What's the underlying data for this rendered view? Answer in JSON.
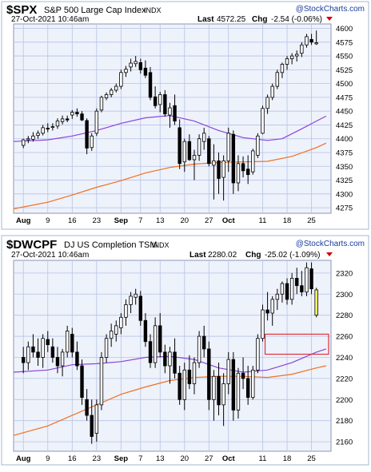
{
  "colors": {
    "background": "#ffffff",
    "plot_bg": "#eef2fb",
    "panel_border": "#aab4d2",
    "grid": "#b6c3e6",
    "candle": "#000000",
    "ma_short": "#8a44d8",
    "ma_long": "#f07020",
    "logo_blue": "#1a3c9c",
    "chg_marker": "#cc0000",
    "highlight_box": "#e0303a",
    "last_bar_fill": "#ffff66"
  },
  "chart_data": [
    {
      "type": "candlestick",
      "ticker": "$SPX",
      "title": "S&P 500 Large Cap Index",
      "exchange": "INDX",
      "brand": "@StockCharts.com",
      "timestamp": "27-Oct-2021 10:46am",
      "last_label": "Last",
      "last_value": "4572.25",
      "chg_label": "Chg",
      "chg_value": "-2.54 (-0.06%)",
      "ylim": [
        4265,
        4608
      ],
      "y_ticks": [
        "4275",
        "4300",
        "4325",
        "4350",
        "4375",
        "4400",
        "4425",
        "4450",
        "4475",
        "4500",
        "4525",
        "4550",
        "4575",
        "4600"
      ],
      "x_ticks": [
        "Aug",
        "9",
        "16",
        "23",
        "Sep",
        "7",
        "13",
        "20",
        "27",
        "Oct",
        "11",
        "18",
        "25"
      ],
      "x_tick_days": [
        0,
        5,
        10,
        15,
        20,
        24,
        28,
        33,
        38,
        42,
        49,
        54,
        59
      ],
      "x_tick_bold": [
        "Aug",
        "Sep",
        "Oct"
      ],
      "x_range": [
        -2,
        63
      ],
      "candles": [
        [
          4388,
          4400,
          4383,
          4398
        ],
        [
          4398,
          4405,
          4392,
          4400
        ],
        [
          4399,
          4412,
          4395,
          4405
        ],
        [
          4406,
          4415,
          4400,
          4410
        ],
        [
          4410,
          4425,
          4406,
          4420
        ],
        [
          4419,
          4428,
          4412,
          4418
        ],
        [
          4421,
          4428,
          4415,
          4422
        ],
        [
          4423,
          4437,
          4418,
          4432
        ],
        [
          4431,
          4442,
          4426,
          4436
        ],
        [
          4436,
          4442,
          4430,
          4434
        ],
        [
          4443,
          4452,
          4436,
          4448
        ],
        [
          4448,
          4455,
          4440,
          4445
        ],
        [
          4445,
          4450,
          4432,
          4434
        ],
        [
          4433,
          4437,
          4372,
          4383
        ],
        [
          4384,
          4410,
          4378,
          4405
        ],
        [
          4410,
          4455,
          4405,
          4450
        ],
        [
          4452,
          4478,
          4448,
          4475
        ],
        [
          4474,
          4484,
          4470,
          4480
        ],
        [
          4480,
          4492,
          4475,
          4488
        ],
        [
          4488,
          4500,
          4484,
          4495
        ],
        [
          4495,
          4525,
          4490,
          4520
        ],
        [
          4520,
          4532,
          4512,
          4526
        ],
        [
          4530,
          4545,
          4522,
          4537
        ],
        [
          4536,
          4550,
          4530,
          4540
        ],
        [
          4538,
          4545,
          4518,
          4525
        ],
        [
          4528,
          4542,
          4510,
          4515
        ],
        [
          4520,
          4530,
          4470,
          4475
        ],
        [
          4476,
          4495,
          4455,
          4460
        ],
        [
          4462,
          4485,
          4448,
          4480
        ],
        [
          4480,
          4488,
          4440,
          4445
        ],
        [
          4443,
          4465,
          4420,
          4456
        ],
        [
          4460,
          4480,
          4425,
          4432
        ],
        [
          4420,
          4435,
          4345,
          4355
        ],
        [
          4358,
          4400,
          4340,
          4395
        ],
        [
          4395,
          4408,
          4360,
          4362
        ],
        [
          4362,
          4380,
          4325,
          4370
        ],
        [
          4370,
          4408,
          4360,
          4400
        ],
        [
          4395,
          4420,
          4380,
          4410
        ],
        [
          4400,
          4405,
          4350,
          4355
        ],
        [
          4352,
          4390,
          4290,
          4360
        ],
        [
          4360,
          4375,
          4300,
          4328
        ],
        [
          4330,
          4370,
          4288,
          4360
        ],
        [
          4360,
          4420,
          4340,
          4410
        ],
        [
          4408,
          4415,
          4300,
          4320
        ],
        [
          4320,
          4370,
          4305,
          4355
        ],
        [
          4355,
          4368,
          4330,
          4342
        ],
        [
          4345,
          4370,
          4318,
          4335
        ],
        [
          4340,
          4382,
          4335,
          4378
        ],
        [
          4370,
          4410,
          4365,
          4405
        ],
        [
          4410,
          4460,
          4408,
          4455
        ],
        [
          4455,
          4480,
          4445,
          4475
        ],
        [
          4475,
          4500,
          4470,
          4495
        ],
        [
          4495,
          4525,
          4490,
          4520
        ],
        [
          4520,
          4538,
          4510,
          4535
        ],
        [
          4535,
          4550,
          4525,
          4545
        ],
        [
          4545,
          4555,
          4535,
          4550
        ],
        [
          4550,
          4560,
          4540,
          4553
        ],
        [
          4555,
          4575,
          4548,
          4570
        ],
        [
          4570,
          4590,
          4565,
          4585
        ],
        [
          4580,
          4590,
          4570,
          4575
        ]
      ],
      "last_candle": [
        4574,
        4596,
        4570,
        4572
      ],
      "ma_short": [
        [
          -2,
          4395
        ],
        [
          5,
          4398
        ],
        [
          10,
          4405
        ],
        [
          15,
          4415
        ],
        [
          20,
          4428
        ],
        [
          25,
          4438
        ],
        [
          30,
          4442
        ],
        [
          35,
          4432
        ],
        [
          40,
          4415
        ],
        [
          45,
          4402
        ],
        [
          50,
          4397
        ],
        [
          53,
          4400
        ],
        [
          57,
          4418
        ],
        [
          60,
          4432
        ],
        [
          62,
          4441
        ]
      ],
      "ma_long": [
        [
          -2,
          4273
        ],
        [
          5,
          4285
        ],
        [
          10,
          4298
        ],
        [
          15,
          4312
        ],
        [
          20,
          4324
        ],
        [
          25,
          4338
        ],
        [
          30,
          4348
        ],
        [
          35,
          4354
        ],
        [
          40,
          4357
        ],
        [
          45,
          4358
        ],
        [
          50,
          4359
        ],
        [
          55,
          4368
        ],
        [
          60,
          4384
        ],
        [
          62,
          4392
        ]
      ],
      "highlight_box": null
    },
    {
      "type": "candlestick",
      "ticker": "$DWCPF",
      "title": "DJ US Completion TSM",
      "exchange": "INDX",
      "brand": "@StockCharts.com",
      "timestamp": "27-Oct-2021 10:46am",
      "last_label": "Last",
      "last_value": "2280.02",
      "chg_label": "Chg",
      "chg_value": "-25.02 (-1.09%)",
      "ylim": [
        2151,
        2332
      ],
      "y_ticks": [
        "2160",
        "2180",
        "2200",
        "2220",
        "2240",
        "2260",
        "2280",
        "2300",
        "2320"
      ],
      "x_ticks": [
        "Aug",
        "9",
        "16",
        "23",
        "Sep",
        "7",
        "13",
        "20",
        "27",
        "Oct",
        "11",
        "18",
        "25"
      ],
      "x_tick_days": [
        0,
        5,
        10,
        15,
        20,
        24,
        28,
        33,
        38,
        42,
        49,
        54,
        59
      ],
      "x_tick_bold": [
        "Aug",
        "Sep",
        "Oct"
      ],
      "x_range": [
        -2,
        63
      ],
      "candles": [
        [
          2240,
          2250,
          2225,
          2235
        ],
        [
          2235,
          2255,
          2228,
          2250
        ],
        [
          2250,
          2262,
          2240,
          2245
        ],
        [
          2245,
          2258,
          2232,
          2240
        ],
        [
          2240,
          2262,
          2230,
          2258
        ],
        [
          2257,
          2265,
          2245,
          2252
        ],
        [
          2250,
          2258,
          2235,
          2240
        ],
        [
          2240,
          2250,
          2225,
          2232
        ],
        [
          2232,
          2248,
          2222,
          2245
        ],
        [
          2245,
          2270,
          2240,
          2265
        ],
        [
          2262,
          2268,
          2240,
          2245
        ],
        [
          2245,
          2255,
          2228,
          2232
        ],
        [
          2232,
          2238,
          2195,
          2202
        ],
        [
          2200,
          2210,
          2180,
          2185
        ],
        [
          2185,
          2200,
          2158,
          2165
        ],
        [
          2168,
          2200,
          2160,
          2195
        ],
        [
          2195,
          2245,
          2190,
          2240
        ],
        [
          2240,
          2262,
          2235,
          2258
        ],
        [
          2258,
          2272,
          2250,
          2265
        ],
        [
          2262,
          2275,
          2255,
          2270
        ],
        [
          2268,
          2282,
          2262,
          2278
        ],
        [
          2278,
          2295,
          2270,
          2290
        ],
        [
          2290,
          2302,
          2282,
          2298
        ],
        [
          2297,
          2305,
          2290,
          2300
        ],
        [
          2298,
          2303,
          2270,
          2275
        ],
        [
          2275,
          2282,
          2250,
          2255
        ],
        [
          2255,
          2262,
          2230,
          2235
        ],
        [
          2235,
          2278,
          2230,
          2270
        ],
        [
          2270,
          2282,
          2240,
          2245
        ],
        [
          2245,
          2252,
          2225,
          2232
        ],
        [
          2232,
          2250,
          2215,
          2245
        ],
        [
          2245,
          2258,
          2220,
          2225
        ],
        [
          2225,
          2232,
          2195,
          2200
        ],
        [
          2200,
          2235,
          2190,
          2228
        ],
        [
          2228,
          2242,
          2210,
          2215
        ],
        [
          2215,
          2240,
          2205,
          2235
        ],
        [
          2235,
          2265,
          2230,
          2260
        ],
        [
          2260,
          2270,
          2240,
          2248
        ],
        [
          2248,
          2255,
          2190,
          2200
        ],
        [
          2200,
          2228,
          2180,
          2222
        ],
        [
          2222,
          2235,
          2185,
          2195
        ],
        [
          2195,
          2225,
          2175,
          2215
        ],
        [
          2215,
          2245,
          2205,
          2238
        ],
        [
          2238,
          2245,
          2180,
          2190
        ],
        [
          2190,
          2230,
          2182,
          2225
        ],
        [
          2225,
          2240,
          2210,
          2220
        ],
        [
          2220,
          2232,
          2195,
          2202
        ],
        [
          2202,
          2232,
          2200,
          2228
        ],
        [
          2228,
          2262,
          2225,
          2258
        ],
        [
          2258,
          2290,
          2255,
          2285
        ],
        [
          2285,
          2302,
          2275,
          2282
        ],
        [
          2282,
          2298,
          2270,
          2295
        ],
        [
          2295,
          2305,
          2285,
          2300
        ],
        [
          2300,
          2312,
          2292,
          2310
        ],
        [
          2310,
          2315,
          2290,
          2295
        ],
        [
          2295,
          2320,
          2290,
          2315
        ],
        [
          2315,
          2325,
          2300,
          2308
        ],
        [
          2308,
          2322,
          2298,
          2302
        ],
        [
          2302,
          2330,
          2298,
          2325
        ],
        [
          2324,
          2330,
          2300,
          2305
        ]
      ],
      "last_candle": [
        2304,
        2306,
        2278,
        2280
      ],
      "ma_short": [
        [
          -2,
          2226
        ],
        [
          5,
          2228
        ],
        [
          10,
          2233
        ],
        [
          15,
          2234
        ],
        [
          20,
          2236
        ],
        [
          25,
          2240
        ],
        [
          30,
          2241
        ],
        [
          35,
          2238
        ],
        [
          40,
          2230
        ],
        [
          45,
          2226
        ],
        [
          50,
          2228
        ],
        [
          55,
          2235
        ],
        [
          60,
          2245
        ],
        [
          62,
          2248
        ]
      ],
      "ma_long": [
        [
          -2,
          2166
        ],
        [
          5,
          2175
        ],
        [
          10,
          2185
        ],
        [
          15,
          2195
        ],
        [
          20,
          2205
        ],
        [
          25,
          2212
        ],
        [
          30,
          2218
        ],
        [
          35,
          2221
        ],
        [
          40,
          2222
        ],
        [
          45,
          2222
        ],
        [
          50,
          2221
        ],
        [
          55,
          2224
        ],
        [
          60,
          2230
        ],
        [
          62,
          2232
        ]
      ],
      "highlight_box": {
        "x0": 49.5,
        "x1": 62.5,
        "y0": 2243,
        "y1": 2262
      }
    }
  ]
}
